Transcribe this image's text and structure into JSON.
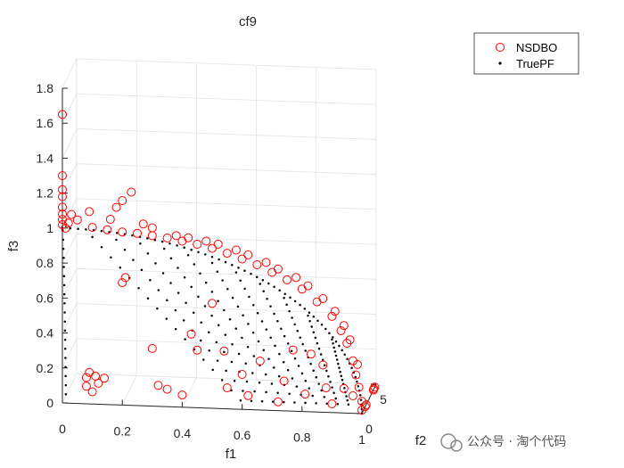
{
  "chart_data": {
    "type": "scatter3d",
    "title": "cf9",
    "xlabel": "f1",
    "ylabel": "f2",
    "zlabel": "f3",
    "xlim": [
      0,
      1
    ],
    "ylim": [
      0,
      5
    ],
    "zlim": [
      0,
      1.8
    ],
    "xticks": [
      "0",
      "0.2",
      "0.4",
      "0.6",
      "0.8",
      "1"
    ],
    "yticks": [
      "0",
      "5"
    ],
    "zticks": [
      "0",
      "0.2",
      "0.4",
      "0.6",
      "0.8",
      "1",
      "1.2",
      "1.4",
      "1.6",
      "1.8"
    ],
    "grid": true,
    "legend_position": "top-right",
    "series": [
      {
        "name": "NSDBO",
        "marker": "open-circle",
        "color": "#ff0000",
        "points": [
          [
            0.0,
            0.0,
            1.65
          ],
          [
            0.0,
            0.0,
            1.3
          ],
          [
            0.0,
            0.0,
            1.22
          ],
          [
            0.0,
            0.0,
            1.18
          ],
          [
            0.0,
            0.0,
            1.12
          ],
          [
            0.0,
            0.0,
            1.08
          ],
          [
            0.0,
            0.0,
            1.05
          ],
          [
            0.0,
            0.0,
            1.02
          ],
          [
            0.01,
            0.0,
            1.0
          ],
          [
            0.02,
            0.0,
            1.03
          ],
          [
            0.03,
            0.0,
            1.08
          ],
          [
            0.05,
            0.0,
            1.05
          ],
          [
            0.09,
            0.0,
            1.1
          ],
          [
            0.18,
            0.0,
            1.13
          ],
          [
            0.2,
            0.0,
            1.17
          ],
          [
            0.23,
            0.0,
            1.22
          ],
          [
            0.16,
            0.0,
            1.06
          ],
          [
            0.27,
            0.0,
            1.04
          ],
          [
            0.3,
            0.0,
            1.02
          ],
          [
            0.1,
            0.0,
            1.01
          ],
          [
            0.15,
            0.0,
            1.0
          ],
          [
            0.2,
            0.0,
            0.99
          ],
          [
            0.25,
            0.0,
            0.985
          ],
          [
            0.3,
            0.0,
            0.975
          ],
          [
            0.35,
            0.0,
            0.965
          ],
          [
            0.4,
            0.0,
            0.95
          ],
          [
            0.45,
            0.0,
            0.935
          ],
          [
            0.5,
            0.0,
            0.915
          ],
          [
            0.55,
            0.0,
            0.89
          ],
          [
            0.6,
            0.0,
            0.86
          ],
          [
            0.65,
            0.0,
            0.83
          ],
          [
            0.7,
            0.0,
            0.79
          ],
          [
            0.75,
            0.0,
            0.75
          ],
          [
            0.8,
            0.0,
            0.7
          ],
          [
            0.85,
            0.0,
            0.63
          ],
          [
            0.9,
            0.0,
            0.55
          ],
          [
            0.93,
            0.0,
            0.47
          ],
          [
            0.95,
            0.0,
            0.4
          ],
          [
            0.97,
            0.0,
            0.3
          ],
          [
            0.98,
            0.0,
            0.22
          ],
          [
            0.99,
            0.0,
            0.15
          ],
          [
            1.0,
            0.0,
            0.07
          ],
          [
            1.0,
            0.0,
            0.02
          ],
          [
            0.38,
            0.0,
            0.98
          ],
          [
            0.42,
            0.0,
            0.97
          ],
          [
            0.48,
            0.0,
            0.955
          ],
          [
            0.52,
            0.0,
            0.94
          ],
          [
            0.58,
            0.0,
            0.91
          ],
          [
            0.62,
            0.0,
            0.885
          ],
          [
            0.68,
            0.0,
            0.845
          ],
          [
            0.72,
            0.0,
            0.81
          ],
          [
            0.78,
            0.0,
            0.765
          ],
          [
            0.82,
            0.0,
            0.72
          ],
          [
            0.87,
            0.0,
            0.65
          ],
          [
            0.91,
            0.0,
            0.58
          ],
          [
            0.94,
            0.0,
            0.5
          ],
          [
            0.96,
            0.0,
            0.42
          ],
          [
            0.985,
            0.0,
            0.28
          ],
          [
            0.2,
            0.0,
            0.7
          ],
          [
            0.21,
            0.0,
            0.73
          ],
          [
            0.5,
            0.0,
            0.6
          ],
          [
            0.3,
            0.0,
            0.33
          ],
          [
            0.43,
            0.0,
            0.42
          ],
          [
            0.45,
            0.0,
            0.33
          ],
          [
            0.54,
            0.0,
            0.33
          ],
          [
            0.6,
            0.0,
            0.2
          ],
          [
            0.66,
            0.0,
            0.28
          ],
          [
            0.77,
            0.0,
            0.35
          ],
          [
            0.83,
            0.0,
            0.33
          ],
          [
            0.87,
            0.0,
            0.27
          ],
          [
            0.74,
            0.0,
            0.17
          ],
          [
            0.55,
            0.0,
            0.12
          ],
          [
            0.62,
            0.0,
            0.08
          ],
          [
            0.4,
            0.0,
            0.07
          ],
          [
            0.35,
            0.0,
            0.1
          ],
          [
            0.32,
            0.0,
            0.12
          ],
          [
            0.1,
            0.0,
            0.07
          ],
          [
            0.08,
            0.0,
            0.1
          ],
          [
            0.12,
            0.0,
            0.12
          ],
          [
            0.09,
            0.0,
            0.18
          ],
          [
            0.11,
            0.0,
            0.16
          ],
          [
            0.14,
            0.0,
            0.15
          ],
          [
            0.08,
            0.0,
            0.15
          ],
          [
            0.94,
            0.0,
            0.14
          ],
          [
            0.97,
            0.0,
            0.1
          ],
          [
            0.72,
            0.0,
            0.05
          ],
          [
            0.81,
            0.0,
            0.1
          ],
          [
            0.88,
            0.0,
            0.14
          ],
          [
            1.0,
            4.5,
            0.0
          ],
          [
            1.0,
            4.2,
            0.0
          ],
          [
            1.0,
            4.0,
            0.0
          ],
          [
            1.0,
            1.5,
            0.0
          ],
          [
            1.0,
            1.2,
            0.0
          ],
          [
            0.9,
            0.0,
            0.05
          ]
        ]
      },
      {
        "name": "TruePF",
        "marker": "dot",
        "color": "#000000"
      }
    ]
  },
  "watermark": {
    "text": "公众号 · 淘个代码"
  }
}
